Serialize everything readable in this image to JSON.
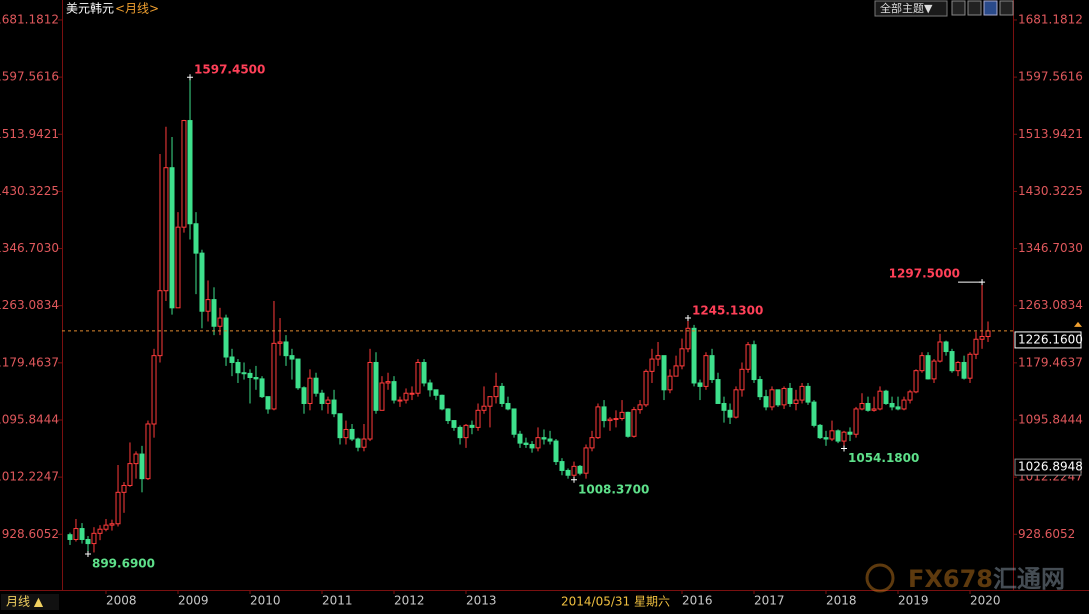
{
  "chart_data": {
    "type": "candlestick",
    "title": "美元韩元",
    "period": "<月线>",
    "up_color": "#ff3b3b",
    "down_color": "#3ee08c",
    "xlim": [
      2007.389,
      2020.597
    ],
    "xticks": [
      2008,
      2009,
      2010,
      2011,
      2012,
      2013,
      2016,
      2017,
      2018,
      2019,
      2020
    ],
    "ylim": [
      850,
      1698.7
    ],
    "yticks": [
      1681.1812,
      1597.5616,
      1513.9421,
      1430.3225,
      {
        "value": 1346.703,
        "label": "1346.7030"
      },
      1263.0834,
      1179.4637,
      1095.8444,
      1012.2247,
      928.6052
    ],
    "x": [
      2007.5,
      2007.583,
      2007.667,
      2007.75,
      2007.833,
      2007.917,
      2008,
      2008.083,
      2008.167,
      2008.25,
      2008.333,
      2008.417,
      2008.5,
      2008.583,
      2008.667,
      2008.75,
      2008.833,
      2008.917,
      2009,
      2009.083,
      2009.167,
      2009.25,
      2009.333,
      2009.417,
      2009.5,
      2009.583,
      2009.667,
      2009.75,
      2009.833,
      2009.917,
      2010,
      2010.083,
      2010.167,
      2010.25,
      2010.333,
      2010.417,
      2010.5,
      2010.583,
      2010.667,
      2010.75,
      2010.833,
      2010.917,
      2011,
      2011.083,
      2011.167,
      2011.25,
      2011.333,
      2011.417,
      2011.5,
      2011.583,
      2011.667,
      2011.75,
      2011.833,
      2011.917,
      2012,
      2012.083,
      2012.167,
      2012.25,
      2012.333,
      2012.417,
      2012.5,
      2012.583,
      2012.667,
      2012.75,
      2012.833,
      2012.917,
      2013,
      2013.083,
      2013.167,
      2013.25,
      2013.333,
      2013.417,
      2013.5,
      2013.583,
      2013.667,
      2013.75,
      2013.833,
      2013.917,
      2014,
      2014.083,
      2014.167,
      2014.25,
      2014.333,
      2014.417,
      2014.5,
      2014.583,
      2014.667,
      2014.75,
      2014.833,
      2014.917,
      2015,
      2015.083,
      2015.167,
      2015.25,
      2015.333,
      2015.417,
      2015.5,
      2015.583,
      2015.667,
      2015.75,
      2015.833,
      2015.917,
      2016,
      2016.083,
      2016.167,
      2016.25,
      2016.333,
      2016.417,
      2016.5,
      2016.583,
      2016.667,
      2016.75,
      2016.833,
      2016.917,
      2017,
      2017.083,
      2017.167,
      2017.25,
      2017.333,
      2017.417,
      2017.5,
      2017.583,
      2017.667,
      2017.75,
      2017.833,
      2017.917,
      2018,
      2018.083,
      2018.167,
      2018.25,
      2018.333,
      2018.417,
      2018.5,
      2018.583,
      2018.667,
      2018.75,
      2018.833,
      2018.917,
      2019,
      2019.083,
      2019.167,
      2019.25,
      2019.333,
      2019.417,
      2019.5,
      2019.583,
      2019.667,
      2019.75,
      2019.833,
      2019.917,
      2020,
      2020.083,
      2020.167,
      2020.25
    ],
    "open": [
      928,
      921,
      937,
      921,
      915,
      930,
      936,
      942,
      944,
      990,
      1000,
      1032,
      1046,
      1010,
      1090,
      1190,
      1285,
      1465,
      1260,
      1378,
      1534,
      1383,
      1340,
      1255,
      1272,
      1233,
      1245,
      1188,
      1180,
      1165,
      1164,
      1158,
      1156,
      1130,
      1112,
      1208,
      1210,
      1190,
      1185,
      1143,
      1120,
      1157,
      1135,
      1120,
      1125,
      1105,
      1070,
      1082,
      1068,
      1056,
      1068,
      1180,
      1110,
      1150,
      1152,
      1125,
      1125,
      1135,
      1135,
      1180,
      1150,
      1140,
      1132,
      1112,
      1095,
      1085,
      1070,
      1088,
      1085,
      1110,
      1116,
      1130,
      1145,
      1120,
      1112,
      1075,
      1062,
      1060,
      1055,
      1070,
      1068,
      1065,
      1035,
      1022,
      1015,
      1028,
      1018,
      1055,
      1070,
      1115,
      1095,
      1097,
      1098,
      1107,
      1072,
      1111,
      1118,
      1167,
      1185,
      1190,
      1140,
      1160,
      1175,
      1200,
      1230,
      1150,
      1145,
      1190,
      1155,
      1120,
      1110,
      1100,
      1140,
      1170,
      1206,
      1155,
      1130,
      1115,
      1140,
      1118,
      1142,
      1120,
      1125,
      1145,
      1122,
      1088,
      1070,
      1068,
      1080,
      1065,
      1078,
      1075,
      1112,
      1120,
      1110,
      1112,
      1138,
      1120,
      1115,
      1112,
      1125,
      1137,
      1168,
      1190,
      1156,
      1182,
      1210,
      1196,
      1168,
      1180,
      1157,
      1192,
      1214,
      1218
    ],
    "high": [
      931,
      951,
      945,
      926,
      939,
      942,
      951,
      950,
      1030,
      1005,
      1063,
      1050,
      1058,
      1095,
      1200,
      1485,
      1525,
      1510,
      1400,
      1535,
      1597.45,
      1400,
      1345,
      1300,
      1290,
      1260,
      1250,
      1200,
      1185,
      1180,
      1170,
      1175,
      1160,
      1130,
      1270,
      1245,
      1220,
      1200,
      1185,
      1145,
      1170,
      1165,
      1140,
      1130,
      1140,
      1105,
      1095,
      1090,
      1070,
      1090,
      1200,
      1195,
      1160,
      1165,
      1160,
      1130,
      1142,
      1145,
      1185,
      1185,
      1155,
      1140,
      1133,
      1113,
      1095,
      1088,
      1090,
      1095,
      1120,
      1145,
      1130,
      1165,
      1150,
      1130,
      1112,
      1080,
      1070,
      1065,
      1085,
      1082,
      1080,
      1068,
      1040,
      1025,
      1035,
      1030,
      1060,
      1080,
      1120,
      1125,
      1100,
      1110,
      1125,
      1108,
      1115,
      1125,
      1170,
      1200,
      1210,
      1190,
      1170,
      1190,
      1215,
      1245.13,
      1235,
      1155,
      1195,
      1200,
      1165,
      1130,
      1120,
      1145,
      1180,
      1210,
      1212,
      1160,
      1140,
      1145,
      1140,
      1145,
      1150,
      1140,
      1150,
      1150,
      1125,
      1090,
      1080,
      1095,
      1082,
      1080,
      1085,
      1115,
      1135,
      1130,
      1130,
      1145,
      1140,
      1130,
      1130,
      1130,
      1140,
      1170,
      1195,
      1195,
      1185,
      1222,
      1212,
      1200,
      1182,
      1190,
      1195,
      1225,
      1297.5,
      1240
    ],
    "low": [
      913,
      918,
      915,
      899.69,
      902,
      920,
      933,
      934,
      940,
      960,
      998,
      1010,
      990,
      1008,
      1070,
      1180,
      1270,
      1250,
      1260,
      1370,
      1360,
      1280,
      1230,
      1240,
      1220,
      1220,
      1175,
      1160,
      1150,
      1155,
      1120,
      1140,
      1128,
      1105,
      1110,
      1190,
      1175,
      1155,
      1140,
      1105,
      1110,
      1130,
      1110,
      1105,
      1100,
      1060,
      1060,
      1065,
      1050,
      1050,
      1065,
      1105,
      1110,
      1140,
      1120,
      1115,
      1120,
      1125,
      1130,
      1145,
      1130,
      1125,
      1110,
      1090,
      1080,
      1060,
      1055,
      1075,
      1080,
      1105,
      1085,
      1120,
      1115,
      1110,
      1070,
      1055,
      1055,
      1048,
      1050,
      1060,
      1060,
      1030,
      1015,
      1010,
      1008.37,
      1015,
      1010,
      1050,
      1068,
      1085,
      1080,
      1085,
      1095,
      1070,
      1070,
      1105,
      1115,
      1150,
      1175,
      1125,
      1135,
      1160,
      1170,
      1195,
      1145,
      1125,
      1140,
      1150,
      1120,
      1092,
      1090,
      1098,
      1130,
      1165,
      1150,
      1125,
      1110,
      1110,
      1115,
      1112,
      1115,
      1110,
      1120,
      1118,
      1085,
      1068,
      1058,
      1065,
      1062,
      1054.18,
      1065,
      1070,
      1110,
      1108,
      1108,
      1110,
      1118,
      1110,
      1110,
      1110,
      1120,
      1135,
      1165,
      1155,
      1150,
      1180,
      1190,
      1165,
      1160,
      1155,
      1150,
      1185,
      1200,
      1210
    ],
    "close": [
      921,
      937,
      921,
      915,
      930,
      936,
      942,
      944,
      990,
      1000,
      1032,
      1046,
      1010,
      1090,
      1190,
      1285,
      1465,
      1260,
      1378,
      1534,
      1383,
      1340,
      1255,
      1272,
      1233,
      1245,
      1188,
      1180,
      1165,
      1164,
      1158,
      1156,
      1130,
      1112,
      1208,
      1210,
      1190,
      1185,
      1143,
      1120,
      1157,
      1135,
      1120,
      1125,
      1105,
      1070,
      1082,
      1068,
      1056,
      1068,
      1180,
      1110,
      1150,
      1152,
      1125,
      1125,
      1135,
      1135,
      1180,
      1150,
      1140,
      1132,
      1112,
      1095,
      1085,
      1070,
      1088,
      1085,
      1110,
      1116,
      1130,
      1145,
      1120,
      1112,
      1075,
      1062,
      1060,
      1055,
      1070,
      1068,
      1065,
      1035,
      1022,
      1015,
      1028,
      1018,
      1055,
      1070,
      1115,
      1095,
      1097,
      1098,
      1107,
      1072,
      1111,
      1118,
      1167,
      1185,
      1190,
      1140,
      1160,
      1175,
      1200,
      1230,
      1150,
      1145,
      1190,
      1155,
      1120,
      1110,
      1100,
      1140,
      1170,
      1206,
      1155,
      1130,
      1115,
      1140,
      1118,
      1142,
      1120,
      1125,
      1145,
      1122,
      1088,
      1070,
      1068,
      1080,
      1065,
      1078,
      1075,
      1112,
      1120,
      1110,
      1112,
      1138,
      1120,
      1115,
      1112,
      1125,
      1137,
      1168,
      1190,
      1156,
      1182,
      1210,
      1196,
      1168,
      1180,
      1157,
      1192,
      1214,
      1218,
      1226.16
    ],
    "annotations": [
      {
        "x": 2009.167,
        "value": 1597.45,
        "label": "1597.4500",
        "kind": "high"
      },
      {
        "x": 2016.083,
        "value": 1245.13,
        "label": "1245.1300",
        "kind": "high"
      },
      {
        "x": 2020.167,
        "value": 1297.5,
        "label": "1297.5000",
        "kind": "high"
      },
      {
        "x": 2007.75,
        "value": 899.69,
        "label": "899.6900",
        "kind": "low"
      },
      {
        "x": 2014.5,
        "value": 1008.37,
        "label": "1008.3700",
        "kind": "low"
      },
      {
        "x": 2018.25,
        "value": 1054.18,
        "label": "1054.1800",
        "kind": "low"
      }
    ],
    "last_price": {
      "value": 1226.16,
      "label": "1226.1600"
    },
    "cursor_price": 1026.8948,
    "cursor_date": "2014/05/31 星期六"
  },
  "ui": {
    "period_button": "月线 ▲",
    "theme_button": "全部主题▼",
    "watermark_brand": "FX678",
    "watermark_name": "汇通网"
  }
}
